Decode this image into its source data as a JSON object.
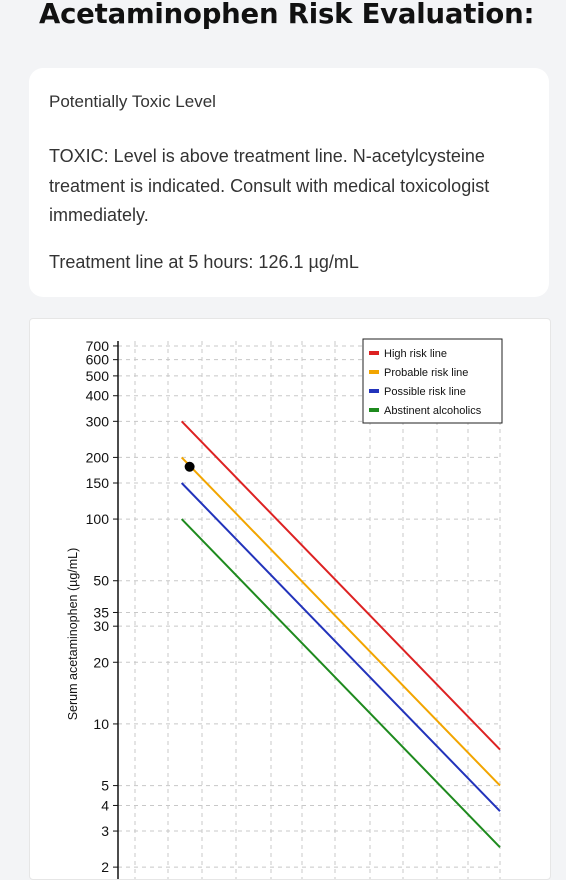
{
  "header": {
    "title": "Acetaminophen Risk Evaluation:"
  },
  "result": {
    "level": "Potentially Toxic Level",
    "message": "TOXIC: Level is above treatment line. N-acetylcysteine treatment is indicated. Consult with medical toxicologist immediately.",
    "treatment_line": "Treatment line at 5 hours: 126.1 µg/mL"
  },
  "chart_data": {
    "type": "line",
    "ylabel": "Serum acetaminophen (µg/mL)",
    "yscale": "log",
    "y_ticks": [
      2,
      3,
      4,
      5,
      10,
      20,
      30,
      35,
      50,
      100,
      150,
      200,
      300,
      400,
      500,
      600,
      700
    ],
    "ylim": [
      1.75,
      740
    ],
    "xlim": [
      0,
      24
    ],
    "grid": true,
    "legend": "top-right",
    "series": [
      {
        "name": "High risk line",
        "color": "#dd2222",
        "x": [
          4,
          24
        ],
        "y": [
          300,
          7.5
        ]
      },
      {
        "name": "Probable risk line",
        "color": "#f2a500",
        "x": [
          4,
          24
        ],
        "y": [
          200,
          5
        ]
      },
      {
        "name": "Possible risk line",
        "color": "#2233bb",
        "x": [
          4,
          24
        ],
        "y": [
          150,
          3.75
        ]
      },
      {
        "name": "Abstinent alcoholics",
        "color": "#1e8a1e",
        "x": [
          4,
          24
        ],
        "y": [
          100,
          2.5
        ]
      }
    ],
    "points": [
      {
        "x": 4.5,
        "y": 180
      }
    ]
  }
}
